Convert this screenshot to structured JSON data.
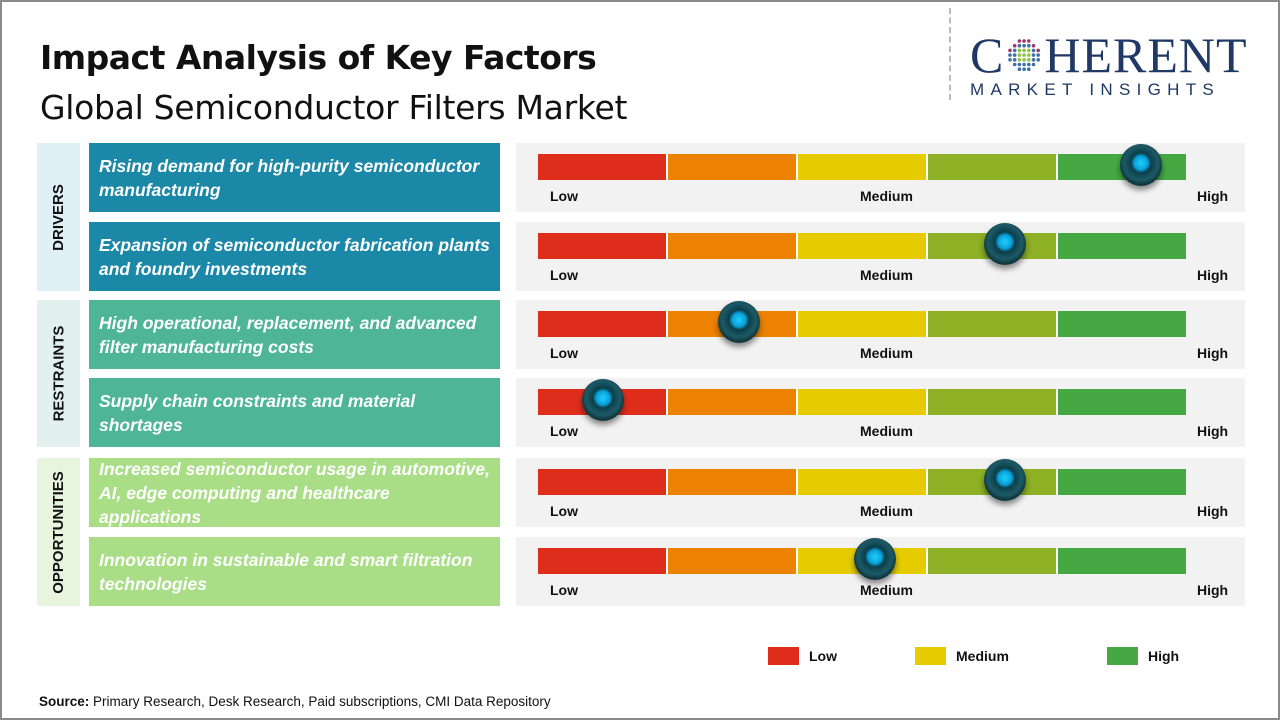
{
  "header": {
    "title": "Impact Analysis of Key Factors",
    "subtitle": "Global Semiconductor Filters Market"
  },
  "logo": {
    "main_before": "C",
    "main_after": "HERENT",
    "sub": "MARKET INSIGHTS"
  },
  "scale": {
    "low": "Low",
    "medium": "Medium",
    "high": "High"
  },
  "colors": {
    "segments": [
      "#de2e1b",
      "#ec8200",
      "#e5cb00",
      "#8db025",
      "#46a843"
    ],
    "drivers": "#1c88a8",
    "drivers_bg": "#dff0f6",
    "restraints": "#4fb597",
    "restraints_bg": "#e2f1ee",
    "opportunities": "#a9dd86",
    "opportunities_bg": "#e7f5df"
  },
  "chart_data": {
    "type": "gauge",
    "scale": [
      "Low",
      "Medium",
      "High"
    ],
    "categories": [
      {
        "name": "DRIVERS",
        "factors": [
          {
            "label": "Rising demand for high-purity semiconductor manufacturing",
            "impact": 0.93
          },
          {
            "label": "Expansion of semiconductor fabrication plants and foundry investments",
            "impact": 0.72
          }
        ]
      },
      {
        "name": "RESTRAINTS",
        "factors": [
          {
            "label": "High operational, replacement, and advanced filter manufacturing costs",
            "impact": 0.31
          },
          {
            "label": "Supply chain constraints and material shortages",
            "impact": 0.1
          }
        ]
      },
      {
        "name": "OPPORTUNITIES",
        "factors": [
          {
            "label": "Increased semiconductor usage in automotive, AI, edge computing and healthcare applications",
            "impact": 0.72
          },
          {
            "label": "Innovation in sustainable and smart filtration technologies",
            "impact": 0.52
          }
        ]
      }
    ]
  },
  "legend": [
    {
      "label": "Low",
      "color": "#de2e1b"
    },
    {
      "label": "Medium",
      "color": "#e5cb00"
    },
    {
      "label": "High",
      "color": "#46a843"
    }
  ],
  "source": {
    "label": "Source:",
    "text": " Primary Research, Desk Research, Paid subscriptions, CMI Data Repository"
  }
}
